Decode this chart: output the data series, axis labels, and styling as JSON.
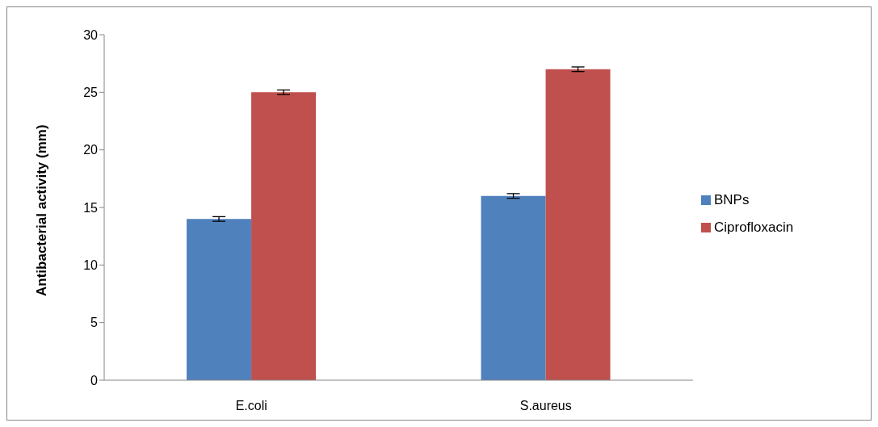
{
  "chart_data": {
    "type": "bar",
    "ylabel": "Antibacterial activity (mm)",
    "categories": [
      "E.coli",
      "S.aureus"
    ],
    "series": [
      {
        "name": "BNPs",
        "color": "#4f81bd",
        "values": [
          14,
          16
        ],
        "errors": [
          0.2,
          0.2
        ]
      },
      {
        "name": "Ciprofloxacin",
        "color": "#c0504d",
        "values": [
          25,
          27
        ],
        "errors": [
          0.2,
          0.2
        ]
      }
    ],
    "ylim": [
      0,
      30
    ],
    "yticks": [
      0,
      5,
      10,
      15,
      20,
      25,
      30
    ],
    "grid": false,
    "legend": "right"
  }
}
